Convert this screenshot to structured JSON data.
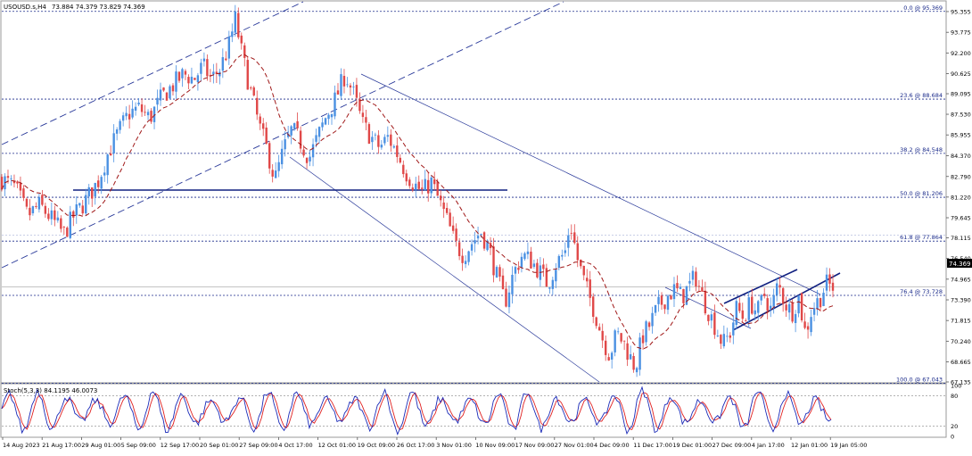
{
  "chart_data": {
    "type": "candlestick",
    "symbol": "USOUSD.s,H4",
    "ohlc_header": "73.884 74.379 73.829 74.369",
    "last_price": "74.369",
    "price_axis": {
      "ylim": [
        67.135,
        96.1
      ],
      "ticks": [
        "95.355",
        "93.775",
        "92.200",
        "90.625",
        "89.095",
        "87.530",
        "85.955",
        "84.370",
        "82.790",
        "81.220",
        "79.645",
        "78.115",
        "76.540",
        "74.965",
        "73.390",
        "71.815",
        "70.240",
        "68.665",
        "67.135"
      ]
    },
    "time_axis": {
      "labels": [
        "14 Aug 2023",
        "21 Aug 17:00",
        "29 Aug 01:00",
        "5 Sep 09:00",
        "12 Sep 17:00",
        "20 Sep 01:00",
        "27 Sep 09:00",
        "4 Oct 17:00",
        "12 Oct 01:00",
        "19 Oct 09:00",
        "26 Oct 17:00",
        "3 Nov 01:00",
        "10 Nov 09:00",
        "17 Nov 09:00",
        "27 Nov 01:00",
        "4 Dec 09:00",
        "11 Dec 17:00",
        "19 Dec 01:00",
        "27 Dec 09:00",
        "4 Jan 17:00",
        "12 Jan 01:00",
        "19 Jan 05:00"
      ]
    },
    "price_path": [
      {
        "t": 0,
        "p": 82.6
      },
      {
        "t": 0.8,
        "p": 81.9
      },
      {
        "t": 1.5,
        "p": 79.8
      },
      {
        "t": 2.2,
        "p": 80.6
      },
      {
        "t": 3.0,
        "p": 79.4
      },
      {
        "t": 3.6,
        "p": 78.4
      },
      {
        "t": 4.2,
        "p": 79.8
      },
      {
        "t": 4.8,
        "p": 80.8
      },
      {
        "t": 5.6,
        "p": 82.4
      },
      {
        "t": 6.2,
        "p": 84.6
      },
      {
        "t": 6.8,
        "p": 86.2
      },
      {
        "t": 7.4,
        "p": 87.6
      },
      {
        "t": 8.0,
        "p": 88.0
      },
      {
        "t": 8.6,
        "p": 87.2
      },
      {
        "t": 9.3,
        "p": 88.8
      },
      {
        "t": 10.0,
        "p": 89.8
      },
      {
        "t": 10.6,
        "p": 90.6
      },
      {
        "t": 11.2,
        "p": 90.2
      },
      {
        "t": 11.7,
        "p": 91.2
      },
      {
        "t": 12.2,
        "p": 90.2
      },
      {
        "t": 12.7,
        "p": 91.0
      },
      {
        "t": 13.2,
        "p": 92.6
      },
      {
        "t": 13.6,
        "p": 94.8
      },
      {
        "t": 14.0,
        "p": 92.0
      },
      {
        "t": 14.5,
        "p": 89.2
      },
      {
        "t": 15.0,
        "p": 86.6
      },
      {
        "t": 15.5,
        "p": 84.6
      },
      {
        "t": 15.9,
        "p": 82.5
      },
      {
        "t": 16.4,
        "p": 84.8
      },
      {
        "t": 16.9,
        "p": 86.4
      },
      {
        "t": 17.4,
        "p": 85.4
      },
      {
        "t": 17.9,
        "p": 84.2
      },
      {
        "t": 18.4,
        "p": 85.8
      },
      {
        "t": 18.9,
        "p": 87.4
      },
      {
        "t": 19.4,
        "p": 88.6
      },
      {
        "t": 20.0,
        "p": 90.6
      },
      {
        "t": 20.5,
        "p": 89.0
      },
      {
        "t": 21.0,
        "p": 86.8
      },
      {
        "t": 21.5,
        "p": 85.8
      },
      {
        "t": 22.0,
        "p": 85.0
      },
      {
        "t": 22.5,
        "p": 85.8
      },
      {
        "t": 23.0,
        "p": 84.6
      },
      {
        "t": 23.5,
        "p": 83.2
      },
      {
        "t": 24.0,
        "p": 82.2
      },
      {
        "t": 24.5,
        "p": 81.6
      },
      {
        "t": 25.0,
        "p": 82.4
      },
      {
        "t": 25.5,
        "p": 80.8
      },
      {
        "t": 26.0,
        "p": 79.2
      },
      {
        "t": 26.4,
        "p": 77.6
      },
      {
        "t": 26.9,
        "p": 76.8
      },
      {
        "t": 27.4,
        "p": 77.8
      },
      {
        "t": 27.9,
        "p": 78.6
      },
      {
        "t": 28.4,
        "p": 77.2
      },
      {
        "t": 28.9,
        "p": 74.8
      },
      {
        "t": 29.3,
        "p": 73.2
      },
      {
        "t": 29.8,
        "p": 75.4
      },
      {
        "t": 30.3,
        "p": 76.8
      },
      {
        "t": 30.8,
        "p": 76.4
      },
      {
        "t": 31.3,
        "p": 75.6
      },
      {
        "t": 31.8,
        "p": 74.6
      },
      {
        "t": 32.3,
        "p": 76.2
      },
      {
        "t": 32.8,
        "p": 77.0
      },
      {
        "t": 33.1,
        "p": 79.4
      },
      {
        "t": 33.5,
        "p": 76.6
      },
      {
        "t": 34.0,
        "p": 74.4
      },
      {
        "t": 34.5,
        "p": 72.6
      },
      {
        "t": 35.0,
        "p": 70.4
      },
      {
        "t": 35.4,
        "p": 69.2
      },
      {
        "t": 35.8,
        "p": 70.8
      },
      {
        "t": 36.2,
        "p": 70.2
      },
      {
        "t": 36.6,
        "p": 69.0
      },
      {
        "t": 36.9,
        "p": 68.2
      },
      {
        "t": 37.3,
        "p": 70.6
      },
      {
        "t": 37.7,
        "p": 71.4
      },
      {
        "t": 38.2,
        "p": 72.8
      },
      {
        "t": 38.7,
        "p": 73.6
      },
      {
        "t": 39.2,
        "p": 74.2
      },
      {
        "t": 39.6,
        "p": 73.6
      },
      {
        "t": 40.0,
        "p": 74.4
      },
      {
        "t": 40.4,
        "p": 75.2
      },
      {
        "t": 40.8,
        "p": 73.6
      },
      {
        "t": 41.2,
        "p": 72.4
      },
      {
        "t": 41.6,
        "p": 71.2
      },
      {
        "t": 42.0,
        "p": 70.0
      },
      {
        "t": 42.4,
        "p": 70.8
      },
      {
        "t": 42.8,
        "p": 72.8
      },
      {
        "t": 43.2,
        "p": 72.0
      },
      {
        "t": 43.6,
        "p": 73.2
      },
      {
        "t": 44.0,
        "p": 72.4
      },
      {
        "t": 44.4,
        "p": 73.8
      },
      {
        "t": 44.8,
        "p": 72.6
      },
      {
        "t": 45.2,
        "p": 74.6
      },
      {
        "t": 45.6,
        "p": 73.2
      },
      {
        "t": 46.0,
        "p": 72.4
      },
      {
        "t": 46.4,
        "p": 73.6
      },
      {
        "t": 46.8,
        "p": 70.8
      },
      {
        "t": 47.2,
        "p": 72.8
      },
      {
        "t": 47.6,
        "p": 73.4
      },
      {
        "t": 48.0,
        "p": 74.6
      },
      {
        "t": 48.4,
        "p": 74.37
      }
    ],
    "fibonacci": [
      {
        "label": "0.0 @ 95.369",
        "price": 95.369
      },
      {
        "label": "23.6 @ 88.684",
        "price": 88.684
      },
      {
        "label": "38.2 @ 84.548",
        "price": 84.548
      },
      {
        "label": "50.0 @ 81.206",
        "price": 81.206
      },
      {
        "label": "61.8 @ 77.864",
        "price": 77.864
      },
      {
        "label": "76.4 @ 73.728",
        "price": 73.728
      },
      {
        "label": "100.0 @ 67.043",
        "price": 67.043
      }
    ],
    "stochastic": {
      "label": "Stoch(5,3,3) 84.1195 46.0073",
      "ylim": [
        0,
        100
      ],
      "ticks": [
        "100",
        "80",
        "20",
        "0"
      ],
      "levels": [
        80,
        20
      ]
    },
    "colors": {
      "bull": "#4a90e2",
      "bear": "#e04848",
      "ma": "#a01818",
      "trend": "#102080",
      "channel": "#2a3a9a",
      "fib": "#1a2a8a",
      "stoch_main": "#1a2ab8",
      "stoch_signal": "#e02020"
    }
  }
}
